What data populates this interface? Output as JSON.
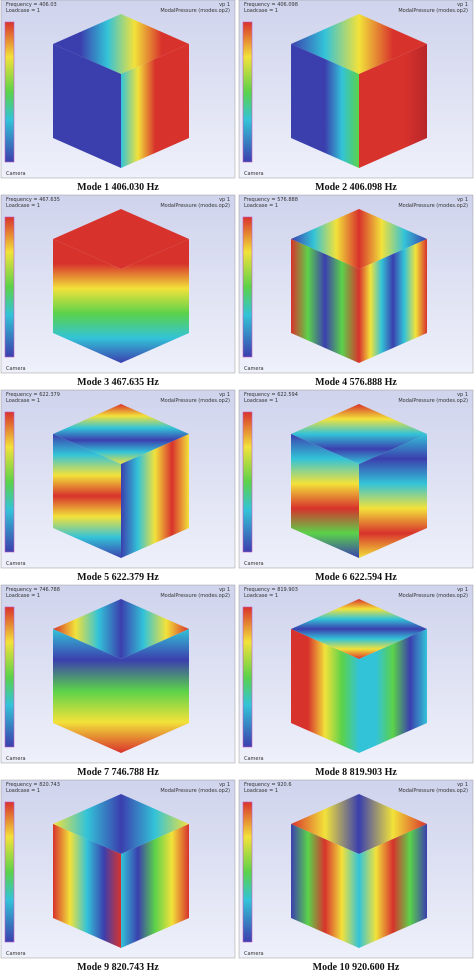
{
  "panels": [
    {
      "frequency": "Frequency = 406.03",
      "loadcase": "Loadcase = 1",
      "viewport": "vp 1",
      "result": "ModalPressure (modes.op2)",
      "camera": "Camera",
      "caption": "Mode 1  406.030 Hz"
    },
    {
      "frequency": "Frequency = 406.098",
      "loadcase": "Loadcase = 1",
      "viewport": "vp 1",
      "result": "ModalPressure (modes.op2)",
      "camera": "Camera",
      "caption": "Mode 2  406.098 Hz"
    },
    {
      "frequency": "Frequency = 467.635",
      "loadcase": "Loadcase = 1",
      "viewport": "vp 1",
      "result": "ModalPressure (modes.op2)",
      "camera": "Camera",
      "caption": "Mode 3  467.635 Hz"
    },
    {
      "frequency": "Frequency = 576.888",
      "loadcase": "Loadcase = 1",
      "viewport": "vp 1",
      "result": "ModalPressure (modes.op2)",
      "camera": "Camera",
      "caption": "Mode 4  576.888 Hz"
    },
    {
      "frequency": "Frequency = 622.379",
      "loadcase": "Loadcase = 1",
      "viewport": "vp 1",
      "result": "ModalPressure (modes.op2)",
      "camera": "Camera",
      "caption": "Mode 5  622.379 Hz"
    },
    {
      "frequency": "Frequency = 622.594",
      "loadcase": "Loadcase = 1",
      "viewport": "vp 1",
      "result": "ModalPressure (modes.op2)",
      "camera": "Camera",
      "caption": "Mode 6  622.594 Hz"
    },
    {
      "frequency": "Frequency = 746.788",
      "loadcase": "Loadcase = 1",
      "viewport": "vp 1",
      "result": "ModalPressure (modes.op2)",
      "camera": "Camera",
      "caption": "Mode 7  746.788 Hz"
    },
    {
      "frequency": "Frequency = 819.903",
      "loadcase": "Loadcase = 1",
      "viewport": "vp 1",
      "result": "ModalPressure (modes.op2)",
      "camera": "Camera",
      "caption": "Mode 8  819.903 Hz"
    },
    {
      "frequency": "Frequency = 820.743",
      "loadcase": "Loadcase = 1",
      "viewport": "vp 1",
      "result": "ModalPressure (modes.op2)",
      "camera": "Camera",
      "caption": "Mode 9  820.743 Hz"
    },
    {
      "frequency": "Frequency = 920.6",
      "loadcase": "Loadcase = 1",
      "viewport": "vp 1",
      "result": "ModalPressure (modes.op2)",
      "camera": "Camera",
      "caption": "Mode 10  920.600 Hz"
    }
  ]
}
